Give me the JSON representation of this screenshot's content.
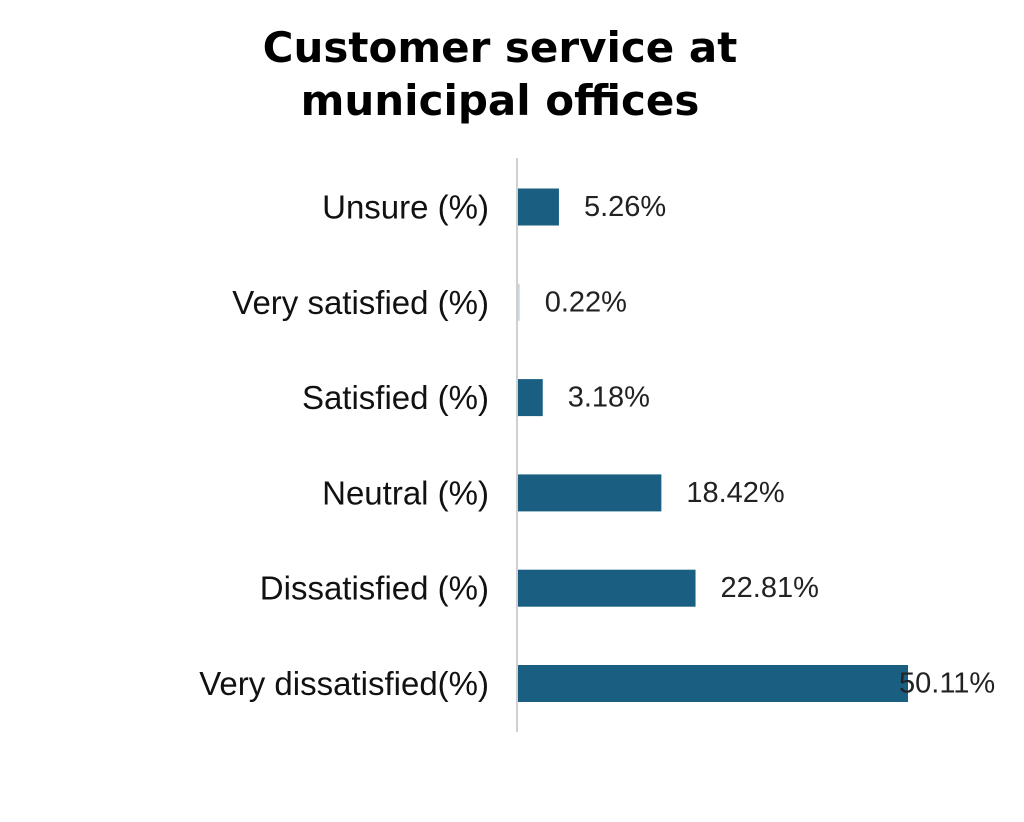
{
  "chart_data": {
    "type": "bar",
    "orientation": "horizontal",
    "title": "Customer service at municipal offices",
    "categories": [
      "Unsure (%)",
      "Very satisfied (%)",
      "Satisfied (%)",
      "Neutral (%)",
      "Dissatisfied (%)",
      "Very dissatisfied(%)"
    ],
    "values": [
      5.26,
      0.22,
      3.18,
      18.42,
      22.81,
      50.11
    ],
    "value_labels": [
      "5.26%",
      "0.22%",
      "3.18%",
      "18.42%",
      "22.81%",
      "50.11%"
    ],
    "xlim": [
      0,
      50.11
    ],
    "grid": false,
    "legend": "none",
    "colors": {
      "bar": "#1a5f82",
      "axis": "#d0d0d0"
    }
  }
}
